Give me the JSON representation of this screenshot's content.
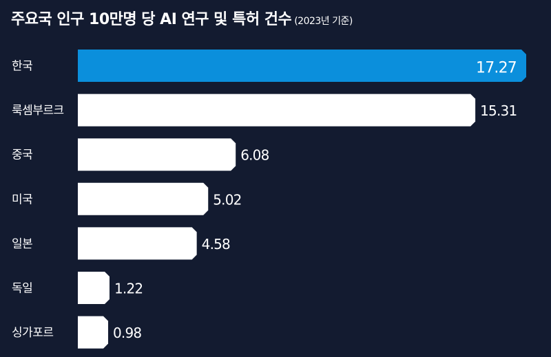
{
  "title": {
    "main": "주요국 인구 10만명 당 AI 연구 및 특허 건수",
    "sub": "(2023년 기준)"
  },
  "colors": {
    "background": "#131b30",
    "highlight_bar": "#0b8fdc",
    "bar": "#ffffff",
    "text": "#ffffff"
  },
  "chart_data": {
    "type": "bar",
    "orientation": "horizontal",
    "title": "주요국 인구 10만명 당 AI 연구 및 특허 건수",
    "subtitle": "(2023년 기준)",
    "categories": [
      "한국",
      "룩셈부르크",
      "중국",
      "미국",
      "일본",
      "독일",
      "싱가포르"
    ],
    "values": [
      17.27,
      15.31,
      6.08,
      5.02,
      4.58,
      1.22,
      0.98
    ],
    "value_labels": [
      "17.27",
      "15.31",
      "6.08",
      "5.02",
      "4.58",
      "1.22",
      "0.98"
    ],
    "highlighted_category": "한국",
    "xlim": [
      0,
      17.27
    ],
    "grid": false,
    "legend": "none"
  }
}
